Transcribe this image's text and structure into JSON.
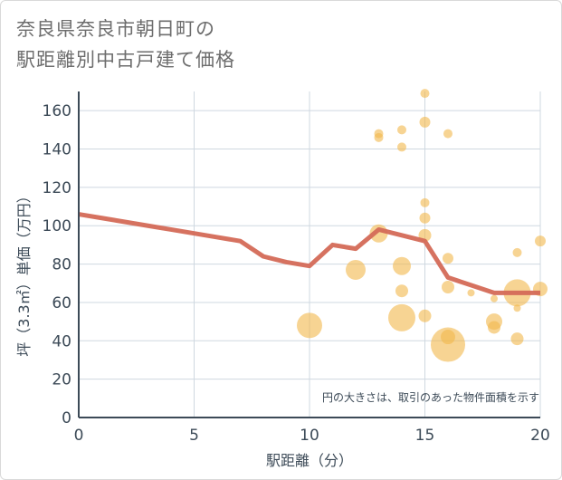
{
  "title_lines": [
    "奈良県奈良市朝日町の",
    "駅距離別中古戸建て価格"
  ],
  "chart_data": {
    "type": "scatter",
    "title": "奈良県奈良市朝日町の駅距離別中古戸建て価格",
    "xlabel": "駅距離（分）",
    "ylabel": "坪（3.3㎡）単価（万円）",
    "xlim": [
      0,
      20
    ],
    "ylim": [
      0,
      170
    ],
    "x_ticks": [
      0,
      5,
      10,
      15,
      20
    ],
    "y_ticks": [
      0,
      20,
      40,
      60,
      80,
      100,
      120,
      140,
      160
    ],
    "grid": true,
    "note": "円の大きさは、取引のあった物件面積を示す",
    "colors": {
      "bubble": "#f2b84b",
      "trend_line": "#d46a57",
      "grid": "#cfd8e0",
      "axis": "#3c4a57"
    },
    "bubbles": [
      {
        "x": 10,
        "y": 48,
        "size": 14
      },
      {
        "x": 12,
        "y": 77,
        "size": 11
      },
      {
        "x": 13,
        "y": 148,
        "size": 5
      },
      {
        "x": 13,
        "y": 146,
        "size": 5
      },
      {
        "x": 13,
        "y": 96,
        "size": 10
      },
      {
        "x": 14,
        "y": 150,
        "size": 5
      },
      {
        "x": 14,
        "y": 141,
        "size": 5
      },
      {
        "x": 14,
        "y": 79,
        "size": 10
      },
      {
        "x": 14,
        "y": 66,
        "size": 7
      },
      {
        "x": 14,
        "y": 52,
        "size": 15
      },
      {
        "x": 15,
        "y": 169,
        "size": 5
      },
      {
        "x": 15,
        "y": 154,
        "size": 6
      },
      {
        "x": 15,
        "y": 112,
        "size": 5
      },
      {
        "x": 15,
        "y": 104,
        "size": 6
      },
      {
        "x": 15,
        "y": 95,
        "size": 7
      },
      {
        "x": 15,
        "y": 53,
        "size": 7
      },
      {
        "x": 16,
        "y": 148,
        "size": 5
      },
      {
        "x": 16,
        "y": 83,
        "size": 6
      },
      {
        "x": 16,
        "y": 68,
        "size": 7
      },
      {
        "x": 16,
        "y": 42,
        "size": 8
      },
      {
        "x": 16,
        "y": 38,
        "size": 19
      },
      {
        "x": 17,
        "y": 65,
        "size": 4
      },
      {
        "x": 18,
        "y": 62,
        "size": 4
      },
      {
        "x": 18,
        "y": 50,
        "size": 9
      },
      {
        "x": 18,
        "y": 47,
        "size": 7
      },
      {
        "x": 19,
        "y": 86,
        "size": 5
      },
      {
        "x": 19,
        "y": 65,
        "size": 15
      },
      {
        "x": 19,
        "y": 57,
        "size": 4
      },
      {
        "x": 19,
        "y": 41,
        "size": 7
      },
      {
        "x": 20,
        "y": 92,
        "size": 6
      },
      {
        "x": 20,
        "y": 67,
        "size": 8
      }
    ],
    "trend": {
      "x": [
        0,
        1,
        2,
        3,
        4,
        5,
        6,
        7,
        8,
        9,
        10,
        11,
        12,
        13,
        14,
        15,
        16,
        17,
        18,
        19,
        20
      ],
      "y": [
        106,
        104,
        102,
        100,
        98,
        96,
        94,
        92,
        84,
        81,
        79,
        90,
        88,
        98,
        95,
        92,
        73,
        69,
        65,
        65,
        65
      ]
    }
  }
}
